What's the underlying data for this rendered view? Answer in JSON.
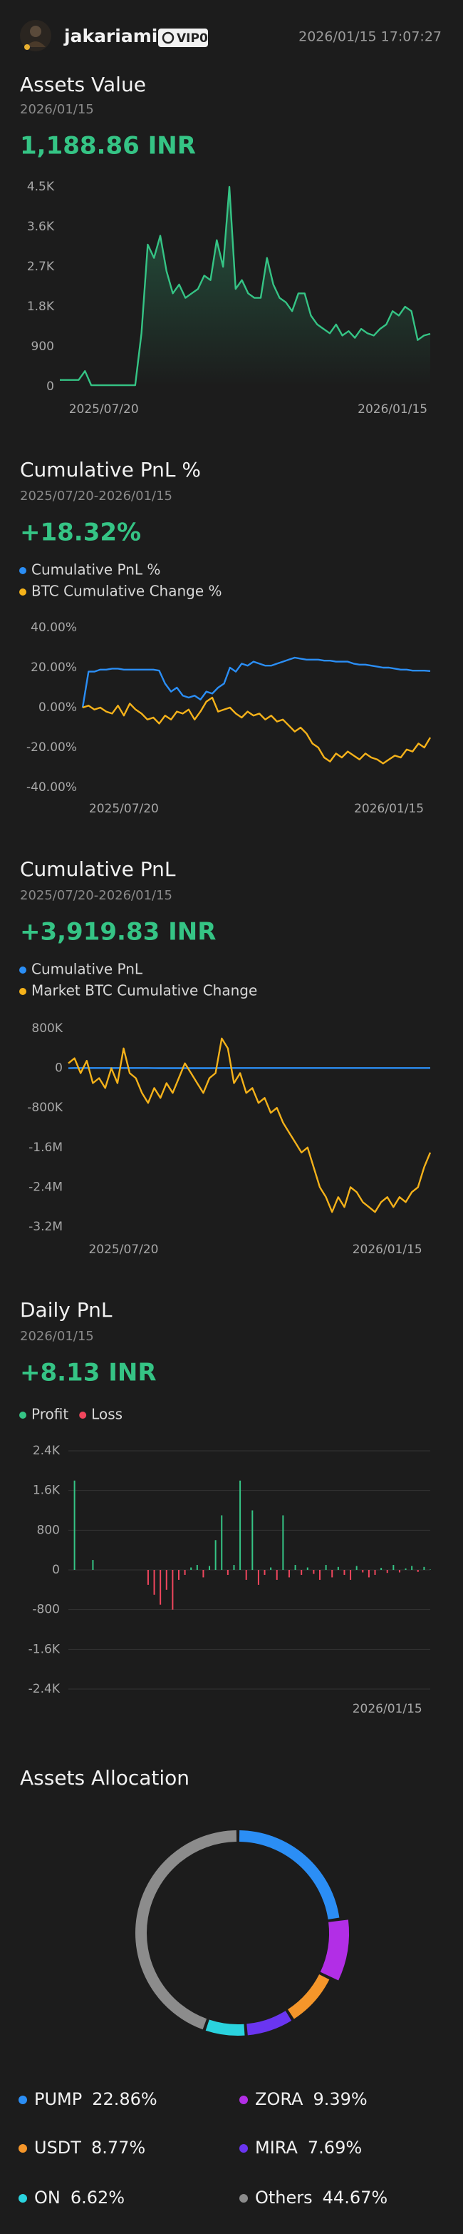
{
  "header": {
    "username": "jakariamir",
    "badge": "VIP0",
    "datetime": "2026/01/15 17:07:27"
  },
  "chart_data": [
    {
      "type": "line",
      "title": "Assets Value",
      "subtitle": "2026/01/15",
      "headline": "1,188.86 INR",
      "color": "#35c485",
      "area": true,
      "values": [
        150,
        150,
        150,
        150,
        350,
        30,
        30,
        30,
        30,
        30,
        30,
        30,
        30,
        1200,
        3200,
        2900,
        3400,
        2600,
        2100,
        2300,
        2000,
        2100,
        2200,
        2500,
        2400,
        3300,
        2700,
        4500,
        2200,
        2400,
        2100,
        2000,
        2000,
        2900,
        2300,
        2000,
        1900,
        1700,
        2100,
        2100,
        1600,
        1400,
        1300,
        1200,
        1400,
        1150,
        1250,
        1100,
        1300,
        1200,
        1150,
        1300,
        1400,
        1700,
        1600,
        1800,
        1700,
        1050,
        1150,
        1190
      ],
      "xlim": [
        0,
        59
      ],
      "xticks": [
        {
          "value": 7,
          "label": "2025/07/20"
        },
        {
          "value": 53,
          "label": "2026/01/15"
        }
      ],
      "ylim": [
        0,
        4500
      ],
      "yticks": [
        0,
        900,
        {
          "value": 1800,
          "label": "1.8K"
        },
        {
          "value": 2700,
          "label": "2.7K"
        },
        {
          "value": 3600,
          "label": "3.6K"
        },
        {
          "value": 4500,
          "label": "4.5K"
        }
      ],
      "grid": false
    },
    {
      "type": "line",
      "title": "Cumulative PnL %",
      "subtitle": "2025/07/20-2026/01/15",
      "headline": "+18.32%",
      "series": [
        {
          "name": "Cumulative PnL %",
          "color": "#2b8ef5",
          "values": [
            0,
            18,
            18,
            19,
            19,
            19.5,
            19.5,
            19,
            19,
            19,
            19,
            19,
            19,
            18.5,
            12,
            8,
            10,
            6,
            5,
            6,
            4,
            8,
            7,
            10,
            12,
            20,
            18,
            22,
            21,
            23,
            22,
            21,
            21,
            22,
            23,
            24,
            25,
            24.5,
            24,
            24,
            24,
            23.5,
            23.5,
            23,
            23,
            23,
            22,
            21.5,
            21.5,
            21,
            20.5,
            20,
            20,
            19.5,
            19,
            19,
            18.5,
            18.5,
            18.5,
            18.3
          ]
        },
        {
          "name": "BTC Cumulative Change %",
          "color": "#f5b21a",
          "values": [
            0,
            1,
            -1,
            0,
            -2,
            -3,
            1,
            -4,
            2,
            -1,
            -3,
            -6,
            -5,
            -8,
            -4,
            -6,
            -2,
            -3,
            -1,
            -6,
            -2,
            3,
            5,
            -2,
            -1,
            0,
            -3,
            -5,
            -2,
            -4,
            -3,
            -6,
            -4,
            -7,
            -6,
            -9,
            -12,
            -10,
            -13,
            -18,
            -20,
            -25,
            -27,
            -23,
            -25,
            -22,
            -24,
            -26,
            -23,
            -25,
            -26,
            -28,
            -26,
            -24,
            -25,
            -21,
            -22,
            -18,
            -20,
            -15
          ]
        }
      ],
      "xlim": [
        0,
        59
      ],
      "xticks": [
        {
          "value": 7,
          "label": "2025/07/20"
        },
        {
          "value": 52,
          "label": "2026/01/15"
        }
      ],
      "ylim": [
        -40,
        40
      ],
      "yticks": [
        {
          "value": -40,
          "label": "-40.00%"
        },
        {
          "value": -20,
          "label": "-20.00%"
        },
        {
          "value": 0,
          "label": "0.00%"
        },
        {
          "value": 20,
          "label": "20.00%"
        },
        {
          "value": 40,
          "label": "40.00%"
        }
      ],
      "grid": false
    },
    {
      "type": "line",
      "title": "Cumulative PnL",
      "subtitle": "2025/07/20-2026/01/15",
      "headline": "+3,919.83 INR",
      "series": [
        {
          "name": "Cumulative PnL",
          "color": "#2b8ef5",
          "values": [
            0,
            3600,
            3600,
            3800,
            3800,
            3900,
            3900,
            3800,
            3800,
            3800,
            3800,
            3800,
            3800,
            3700,
            2400,
            1600,
            2000,
            1200,
            1000,
            1200,
            800,
            1600,
            1400,
            2000,
            2400,
            4000,
            3600,
            4400,
            4200,
            4600,
            4400,
            4200,
            4200,
            4400,
            4600,
            4800,
            5000,
            4900,
            4800,
            4800,
            4800,
            4700,
            4700,
            4600,
            4600,
            4600,
            4400,
            4300,
            4300,
            4200,
            4100,
            4000,
            4000,
            3900,
            3800,
            3800,
            3700,
            3700,
            3700,
            3920
          ]
        },
        {
          "name": "Market BTC Cumulative Change",
          "color": "#f5b21a",
          "values": [
            100000,
            200000,
            -100000,
            150000,
            -300000,
            -200000,
            -400000,
            0,
            -300000,
            400000,
            -100000,
            -200000,
            -500000,
            -700000,
            -400000,
            -600000,
            -300000,
            -500000,
            -200000,
            100000,
            -100000,
            -300000,
            -500000,
            -200000,
            -100000,
            600000,
            400000,
            -300000,
            -100000,
            -500000,
            -400000,
            -700000,
            -600000,
            -900000,
            -800000,
            -1100000,
            -1300000,
            -1500000,
            -1700000,
            -1600000,
            -2000000,
            -2400000,
            -2600000,
            -2900000,
            -2600000,
            -2800000,
            -2400000,
            -2500000,
            -2700000,
            -2800000,
            -2900000,
            -2700000,
            -2600000,
            -2800000,
            -2600000,
            -2700000,
            -2500000,
            -2400000,
            -2000000,
            -1700000
          ]
        }
      ],
      "xlim": [
        0,
        59
      ],
      "xticks": [
        {
          "value": 9,
          "label": "2025/07/20"
        },
        {
          "value": 52,
          "label": "2026/01/15"
        }
      ],
      "ylim": [
        -3200000,
        800000
      ],
      "yticks": [
        {
          "value": -3200000,
          "label": "-3.2M"
        },
        {
          "value": -2400000,
          "label": "-2.4M"
        },
        {
          "value": -1600000,
          "label": "-1.6M"
        },
        {
          "value": -800000,
          "label": "-800K"
        },
        0,
        {
          "value": 800000,
          "label": "800K"
        }
      ],
      "grid": false
    },
    {
      "type": "bar",
      "title": "Daily PnL",
      "subtitle": "2026/01/15",
      "headline": "+8.13 INR",
      "legend": [
        {
          "name": "Profit",
          "color": "#35c485"
        },
        {
          "name": "Loss",
          "color": "#f0465d"
        }
      ],
      "values": [
        0,
        1800,
        0,
        0,
        200,
        0,
        0,
        0,
        0,
        0,
        0,
        0,
        0,
        -300,
        -500,
        -700,
        -400,
        -800,
        -200,
        -100,
        50,
        100,
        -150,
        80,
        600,
        1100,
        -100,
        100,
        1800,
        -200,
        1200,
        -300,
        -100,
        50,
        -200,
        1100,
        -150,
        100,
        -100,
        50,
        -80,
        -200,
        100,
        -150,
        60,
        -100,
        -200,
        80,
        -50,
        -150,
        -100,
        40,
        -60,
        100,
        -50,
        30,
        80,
        -40,
        60,
        8
      ],
      "xlim": [
        0,
        59
      ],
      "xticks": [
        {
          "value": 52,
          "label": "2026/01/15"
        }
      ],
      "ylim": [
        -2400,
        2400
      ],
      "yticks": [
        {
          "value": -2400,
          "label": "-2.4K"
        },
        {
          "value": -1600,
          "label": "-1.6K"
        },
        -800,
        0,
        800,
        {
          "value": 1600,
          "label": "1.6K"
        },
        {
          "value": 2400,
          "label": "2.4K"
        }
      ],
      "grid": true
    },
    {
      "type": "donut",
      "title": "Assets Allocation",
      "highlight": "ZORA",
      "categories": [
        "PUMP",
        "ZORA",
        "USDT",
        "MIRA",
        "ON",
        "Others"
      ],
      "values": [
        22.86,
        9.39,
        8.77,
        7.69,
        6.62,
        44.67
      ],
      "value_labels": [
        "22.86%",
        "9.39%",
        "8.77%",
        "7.69%",
        "6.62%",
        "44.67%"
      ],
      "colors": [
        "#2b8ef5",
        "#b22ee6",
        "#f5962a",
        "#6a35f0",
        "#2ad3de",
        "#8c8c8c"
      ]
    }
  ]
}
